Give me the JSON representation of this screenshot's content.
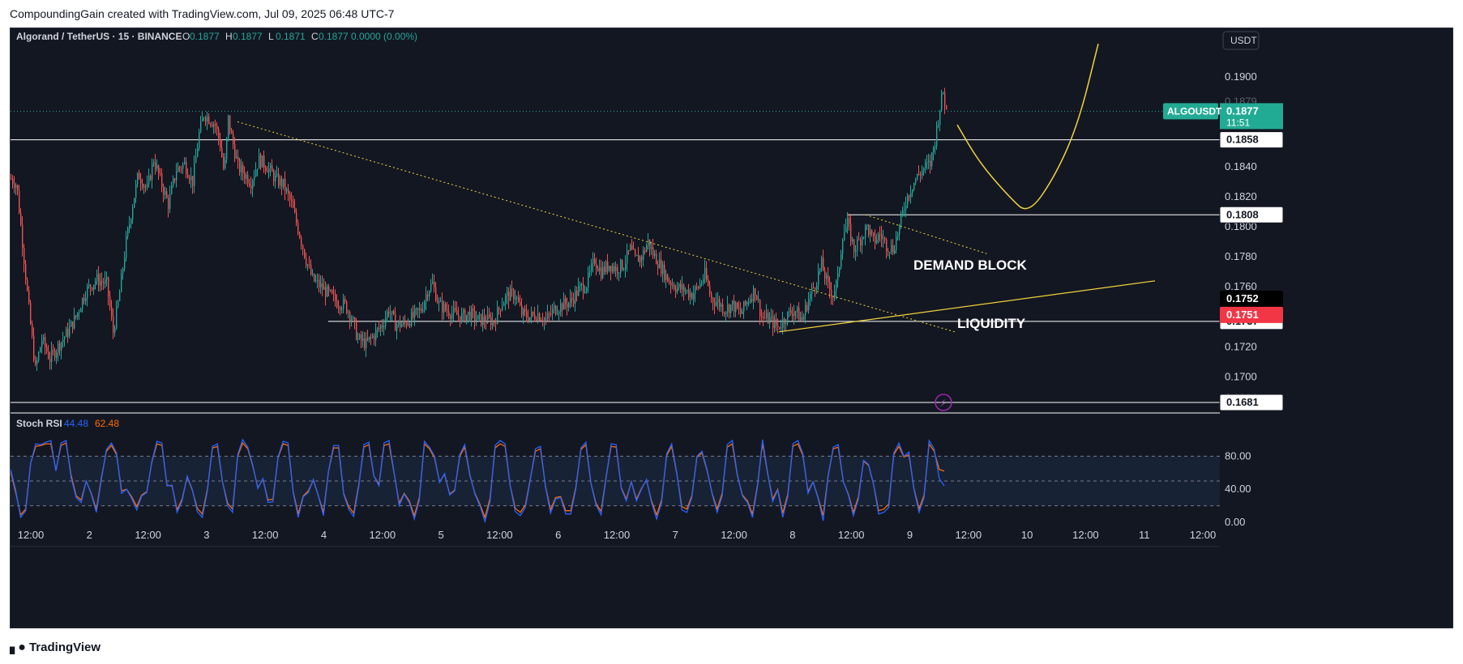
{
  "header": {
    "text": "CompoundingGain created with TradingView.com, Jul 09, 2025 06:48 UTC-7"
  },
  "footer": {
    "brand": "TradingView",
    "logo_icon": "tradingview-logo-icon"
  },
  "currency_button": "USDT",
  "colors": {
    "background": "#131722",
    "up": "#26a69a",
    "down": "#ef5350",
    "annotation_yellow": "#f2d33b",
    "level_line": "#ffffff",
    "stoch_k": "#2962ff",
    "stoch_d": "#ff6d00",
    "price_tag": "#22ab94",
    "red_tag": "#f23645"
  },
  "chart_data": [
    {
      "type": "candlestick",
      "symbol_label": "Algorand / TetherUS · 15 · BINANCE",
      "ohlc": {
        "o_label": "O",
        "o": "0.1877",
        "h_label": "H",
        "h": "0.1877",
        "l_label": "L",
        "l": "0.1871",
        "c_label": "C",
        "c": "0.1877",
        "change": "0.0000 (0.00%)"
      },
      "x_axis": {
        "labels": [
          "12:00",
          "2",
          "12:00",
          "3",
          "12:00",
          "4",
          "12:00",
          "5",
          "12:00",
          "6",
          "12:00",
          "7",
          "12:00",
          "8",
          "12:00",
          "9",
          "12:00",
          "10",
          "12:00",
          "11",
          "12:00"
        ]
      },
      "y_axis": {
        "range": [
          0.167,
          0.1915
        ],
        "ticks": [
          "0.1900",
          "0.1840",
          "0.1820",
          "0.1800",
          "0.1780",
          "0.1760",
          "0.1720",
          "0.1700"
        ],
        "grid": false
      },
      "price_path": [
        [
          0,
          0.1832
        ],
        [
          7,
          0.1828
        ],
        [
          14,
          0.179
        ],
        [
          22,
          0.1745
        ],
        [
          30,
          0.1705
        ],
        [
          38,
          0.1725
        ],
        [
          48,
          0.1712
        ],
        [
          60,
          0.1722
        ],
        [
          70,
          0.173
        ],
        [
          80,
          0.174
        ],
        [
          92,
          0.1757
        ],
        [
          105,
          0.1765
        ],
        [
          118,
          0.1762
        ],
        [
          126,
          0.173
        ],
        [
          133,
          0.1752
        ],
        [
          142,
          0.179
        ],
        [
          150,
          0.1815
        ],
        [
          157,
          0.1835
        ],
        [
          168,
          0.1825
        ],
        [
          176,
          0.1845
        ],
        [
          186,
          0.1828
        ],
        [
          194,
          0.1815
        ],
        [
          204,
          0.1838
        ],
        [
          214,
          0.1842
        ],
        [
          224,
          0.183
        ],
        [
          232,
          0.1862
        ],
        [
          238,
          0.1875
        ],
        [
          245,
          0.1872
        ],
        [
          252,
          0.1868
        ],
        [
          258,
          0.1855
        ],
        [
          263,
          0.1835
        ],
        [
          268,
          0.1872
        ],
        [
          272,
          0.186
        ],
        [
          280,
          0.184
        ],
        [
          288,
          0.1835
        ],
        [
          296,
          0.183
        ],
        [
          306,
          0.1845
        ],
        [
          316,
          0.184
        ],
        [
          326,
          0.1832
        ],
        [
          336,
          0.1828
        ],
        [
          346,
          0.1815
        ],
        [
          356,
          0.1795
        ],
        [
          364,
          0.1778
        ],
        [
          372,
          0.1765
        ],
        [
          382,
          0.176
        ],
        [
          392,
          0.1755
        ],
        [
          402,
          0.175
        ],
        [
          412,
          0.1748
        ],
        [
          420,
          0.174
        ],
        [
          428,
          0.1725
        ],
        [
          438,
          0.1722
        ],
        [
          448,
          0.1728
        ],
        [
          458,
          0.1735
        ],
        [
          466,
          0.1745
        ],
        [
          474,
          0.1735
        ],
        [
          484,
          0.1735
        ],
        [
          496,
          0.174
        ],
        [
          506,
          0.1745
        ],
        [
          514,
          0.1758
        ],
        [
          520,
          0.1762
        ],
        [
          528,
          0.1748
        ],
        [
          536,
          0.1745
        ],
        [
          546,
          0.1742
        ],
        [
          556,
          0.174
        ],
        [
          566,
          0.1742
        ],
        [
          576,
          0.1738
        ],
        [
          586,
          0.1738
        ],
        [
          596,
          0.1737
        ],
        [
          604,
          0.1748
        ],
        [
          612,
          0.1754
        ],
        [
          622,
          0.1755
        ],
        [
          630,
          0.1742
        ],
        [
          640,
          0.174
        ],
        [
          650,
          0.1742
        ],
        [
          660,
          0.1738
        ],
        [
          670,
          0.1745
        ],
        [
          680,
          0.1748
        ],
        [
          690,
          0.175
        ],
        [
          700,
          0.1758
        ],
        [
          710,
          0.1762
        ],
        [
          720,
          0.1778
        ],
        [
          728,
          0.177
        ],
        [
          738,
          0.1775
        ],
        [
          746,
          0.1772
        ],
        [
          756,
          0.1775
        ],
        [
          764,
          0.1785
        ],
        [
          770,
          0.1778
        ],
        [
          778,
          0.178
        ],
        [
          786,
          0.179
        ],
        [
          792,
          0.1782
        ],
        [
          800,
          0.1775
        ],
        [
          810,
          0.1765
        ],
        [
          820,
          0.176
        ],
        [
          830,
          0.1758
        ],
        [
          840,
          0.1755
        ],
        [
          848,
          0.176
        ],
        [
          856,
          0.1768
        ],
        [
          864,
          0.1752
        ],
        [
          872,
          0.175
        ],
        [
          880,
          0.1745
        ],
        [
          890,
          0.1748
        ],
        [
          900,
          0.1742
        ],
        [
          910,
          0.1752
        ],
        [
          918,
          0.1758
        ],
        [
          926,
          0.174
        ],
        [
          936,
          0.1738
        ],
        [
          946,
          0.1733
        ],
        [
          956,
          0.174
        ],
        [
          966,
          0.1745
        ],
        [
          976,
          0.1738
        ],
        [
          984,
          0.1752
        ],
        [
          992,
          0.1762
        ],
        [
          1000,
          0.1775
        ],
        [
          1008,
          0.176
        ],
        [
          1014,
          0.1755
        ],
        [
          1020,
          0.1765
        ],
        [
          1026,
          0.1795
        ],
        [
          1032,
          0.1802
        ],
        [
          1040,
          0.1785
        ],
        [
          1048,
          0.1792
        ],
        [
          1056,
          0.18
        ],
        [
          1064,
          0.179
        ],
        [
          1072,
          0.1795
        ],
        [
          1080,
          0.1788
        ],
        [
          1088,
          0.1785
        ],
        [
          1096,
          0.18
        ],
        [
          1104,
          0.1818
        ],
        [
          1112,
          0.1828
        ],
        [
          1120,
          0.1835
        ],
        [
          1128,
          0.184
        ],
        [
          1134,
          0.1842
        ],
        [
          1140,
          0.1858
        ],
        [
          1146,
          0.188
        ],
        [
          1150,
          0.189
        ],
        [
          1154,
          0.1877
        ]
      ],
      "horizontal_levels": [
        {
          "value": 0.1858,
          "label": "0.1858"
        },
        {
          "value": 0.1808,
          "label": "0.1808"
        },
        {
          "value": 0.1737,
          "label": "0.1737"
        },
        {
          "value": 0.1681,
          "label": "0.1681"
        }
      ],
      "price_tags": {
        "symbol": "ALGOUSDT",
        "last_price": "0.1877",
        "countdown": "11:51",
        "level_black": "0.1752",
        "level_red": "0.1751",
        "partial_top": "0.1879",
        "partial_bottom": "0.1684"
      },
      "annotations": {
        "demand_block": "DEMAND BLOCK",
        "liquidity": "LIQUIDITY"
      },
      "trendlines": [
        {
          "name": "main-descending-trendline",
          "style": "dotted",
          "from": [
            280,
            0.187
          ],
          "to": [
            1165,
            0.173
          ]
        },
        {
          "name": "upper-descending-trendline",
          "style": "dotted",
          "from": [
            1055,
            0.1808
          ],
          "to": [
            1205,
            0.1782
          ]
        },
        {
          "name": "ascending-liquidity-trendline",
          "style": "solid",
          "from": [
            948,
            0.173
          ],
          "to": [
            1412,
            0.1764
          ]
        }
      ],
      "projection_path": {
        "name": "projected-price-path",
        "points": [
          [
            1168,
            0.1868
          ],
          [
            1195,
            0.1843
          ],
          [
            1232,
            0.182
          ],
          [
            1256,
            0.1808
          ],
          [
            1290,
            0.1835
          ],
          [
            1318,
            0.187
          ],
          [
            1342,
            0.1922
          ]
        ]
      }
    },
    {
      "type": "line",
      "indicator": "Stoch RSI",
      "values_label": {
        "k": "44.48",
        "d": "62.48"
      },
      "y_axis": {
        "range": [
          0,
          100
        ],
        "ticks": [
          "80.00",
          "40.00",
          "0.00"
        ],
        "band": [
          20,
          80
        ],
        "midline": 50
      },
      "series": [
        {
          "name": "K",
          "values": [
            64,
            40,
            6,
            14,
            72,
            95,
            94,
            97,
            99,
            62,
            96,
            99,
            54,
            30,
            24,
            50,
            34,
            12,
            52,
            88,
            96,
            84,
            35,
            40,
            29,
            15,
            32,
            36,
            74,
            98,
            96,
            44,
            45,
            12,
            26,
            56,
            40,
            13,
            6,
            38,
            92,
            95,
            49,
            20,
            12,
            82,
            100,
            91,
            69,
            41,
            53,
            24,
            25,
            79,
            98,
            96,
            36,
            6,
            31,
            36,
            52,
            32,
            8,
            62,
            93,
            93,
            34,
            16,
            7,
            44,
            94,
            97,
            56,
            44,
            96,
            99,
            60,
            20,
            34,
            24,
            4,
            27,
            98,
            91,
            80,
            48,
            59,
            33,
            38,
            82,
            94,
            58,
            34,
            20,
            1,
            25,
            93,
            99,
            95,
            44,
            13,
            8,
            18,
            52,
            89,
            92,
            42,
            11,
            28,
            30,
            10,
            10,
            40,
            90,
            97,
            47,
            21,
            9,
            54,
            95,
            94,
            41,
            26,
            49,
            26,
            40,
            52,
            24,
            4,
            24,
            83,
            95,
            60,
            15,
            12,
            30,
            80,
            86,
            64,
            34,
            12,
            32,
            94,
            99,
            58,
            32,
            24,
            6,
            43,
            100,
            60,
            25,
            39,
            6,
            31,
            95,
            99,
            83,
            35,
            49,
            29,
            2,
            56,
            91,
            94,
            49,
            33,
            8,
            28,
            75,
            70,
            46,
            10,
            12,
            18,
            84,
            96,
            80,
            85,
            40,
            12,
            30,
            99,
            89,
            53,
            44
          ]
        },
        {
          "name": "D",
          "values": [
            62,
            37,
            9,
            16,
            72,
            92,
            93,
            95,
            95,
            63,
            93,
            96,
            57,
            32,
            27,
            50,
            35,
            15,
            54,
            86,
            93,
            82,
            38,
            40,
            31,
            19,
            33,
            37,
            73,
            95,
            93,
            45,
            44,
            15,
            28,
            55,
            39,
            17,
            10,
            40,
            90,
            92,
            49,
            23,
            16,
            80,
            96,
            89,
            68,
            42,
            52,
            27,
            28,
            78,
            95,
            93,
            37,
            10,
            32,
            38,
            51,
            32,
            12,
            62,
            90,
            90,
            35,
            19,
            11,
            46,
            91,
            94,
            56,
            46,
            93,
            95,
            59,
            23,
            35,
            26,
            8,
            30,
            95,
            89,
            78,
            49,
            58,
            34,
            39,
            80,
            91,
            57,
            35,
            22,
            6,
            29,
            90,
            95,
            92,
            44,
            17,
            12,
            21,
            53,
            86,
            89,
            43,
            15,
            30,
            31,
            14,
            14,
            42,
            88,
            94,
            47,
            23,
            13,
            55,
            92,
            91,
            42,
            28,
            49,
            28,
            41,
            51,
            26,
            9,
            27,
            81,
            92,
            59,
            19,
            16,
            32,
            79,
            84,
            63,
            35,
            16,
            35,
            91,
            95,
            57,
            33,
            26,
            10,
            45,
            96,
            59,
            28,
            40,
            11,
            34,
            92,
            95,
            81,
            37,
            49,
            30,
            8,
            57,
            89,
            91,
            49,
            34,
            12,
            31,
            74,
            69,
            46,
            14,
            16,
            22,
            82,
            92,
            79,
            82,
            41,
            16,
            33,
            95,
            86,
            64,
            62
          ]
        }
      ]
    }
  ]
}
